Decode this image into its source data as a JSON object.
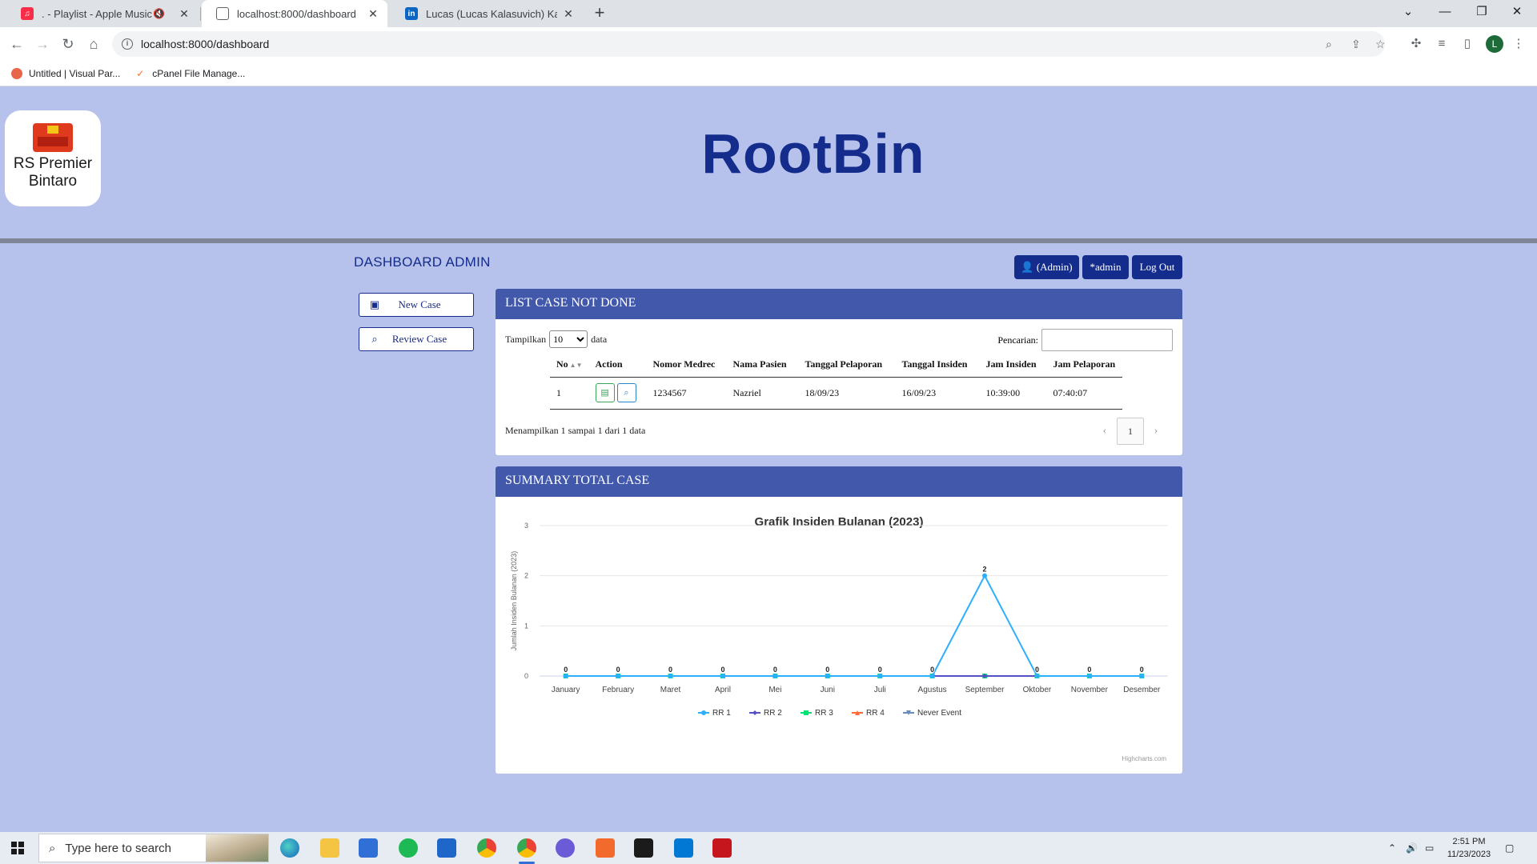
{
  "browser": {
    "tabs": [
      {
        "title": ". - Playlist - Apple Music",
        "active": false
      },
      {
        "title": "localhost:8000/dashboard",
        "active": true
      },
      {
        "title": "Lucas (Lucas Kalasuvich) Kalasuv",
        "active": false
      }
    ],
    "url": "localhost:8000/dashboard",
    "profile_initial": "L",
    "bookmarks": [
      "Untitled | Visual Par...",
      "cPanel File Manage..."
    ]
  },
  "header": {
    "logo_text": "RS Premier Bintaro",
    "site_title": "RootBin"
  },
  "dashboard": {
    "title": "DASHBOARD ADMIN",
    "buttons": {
      "admin": "(Admin)",
      "user": "*admin",
      "logout": "Log Out"
    },
    "sidebar": {
      "new_case": "New Case",
      "review_case": "Review Case"
    }
  },
  "list_panel": {
    "title": "LIST CASE NOT DONE",
    "length_prefix": "Tampilkan",
    "length_value": "10",
    "length_suffix": "data",
    "search_label": "Pencarian:",
    "search_placeholder": "",
    "columns": [
      "No",
      "Action",
      "Nomor Medrec",
      "Nama Pasien",
      "Tanggal Pelaporan",
      "Tanggal Insiden",
      "Jam Insiden",
      "Jam Pelaporan"
    ],
    "rows": [
      {
        "no": "1",
        "medrec": "1234567",
        "nama": "Nazriel",
        "tgl_lapor": "18/09/23",
        "tgl_insiden": "16/09/23",
        "jam_insiden": "10:39:00",
        "jam_lapor": "07:40:07"
      }
    ],
    "info": "Menampilkan 1 sampai 1 dari 1 data",
    "page": "1"
  },
  "summary_panel": {
    "title": "SUMMARY TOTAL CASE",
    "credits": "Highcharts.com"
  },
  "chart_data": {
    "type": "line",
    "title": "Grafik Insiden Bulanan (2023)",
    "ylabel": "Jumlah Insiden Bulanan (2023)",
    "xlabel": "",
    "ylim": [
      0,
      3
    ],
    "yticks": [
      0,
      1,
      2,
      3
    ],
    "grid": true,
    "legend_position": "bottom-center",
    "categories": [
      "January",
      "February",
      "Maret",
      "April",
      "Mei",
      "Juni",
      "Juli",
      "Agustus",
      "September",
      "Oktober",
      "November",
      "Desember"
    ],
    "series": [
      {
        "name": "RR 1",
        "color": "#2caffe",
        "marker": "circle",
        "values": [
          0,
          0,
          0,
          0,
          0,
          0,
          0,
          0,
          2,
          0,
          0,
          0
        ]
      },
      {
        "name": "RR 2",
        "color": "#544fc5",
        "marker": "diamond",
        "values": [
          0,
          0,
          0,
          0,
          0,
          0,
          0,
          0,
          0,
          0,
          0,
          0
        ]
      },
      {
        "name": "RR 3",
        "color": "#00e272",
        "marker": "square",
        "values": [
          0,
          0,
          0,
          0,
          0,
          0,
          0,
          0,
          0,
          0,
          0,
          0
        ]
      },
      {
        "name": "RR 4",
        "color": "#fe6a35",
        "marker": "triangle",
        "values": [
          0,
          0,
          0,
          0,
          0,
          0,
          0,
          0,
          0,
          0,
          0,
          0
        ]
      },
      {
        "name": "Never Event",
        "color": "#6b8abc",
        "marker": "triangle-down",
        "values": [
          0,
          0,
          0,
          0,
          0,
          0,
          0,
          0,
          0,
          0,
          0,
          0
        ]
      }
    ],
    "data_labels": [
      0,
      0,
      0,
      0,
      0,
      0,
      0,
      0,
      2,
      0,
      0,
      0
    ]
  },
  "taskbar": {
    "search_placeholder": "Type here to search",
    "time": "2:51 PM",
    "date": "11/23/2023"
  },
  "colors": {
    "page_bg": "#b6c2ec",
    "brand_dark": "#142c8c",
    "panel_header": "#4258aa"
  }
}
